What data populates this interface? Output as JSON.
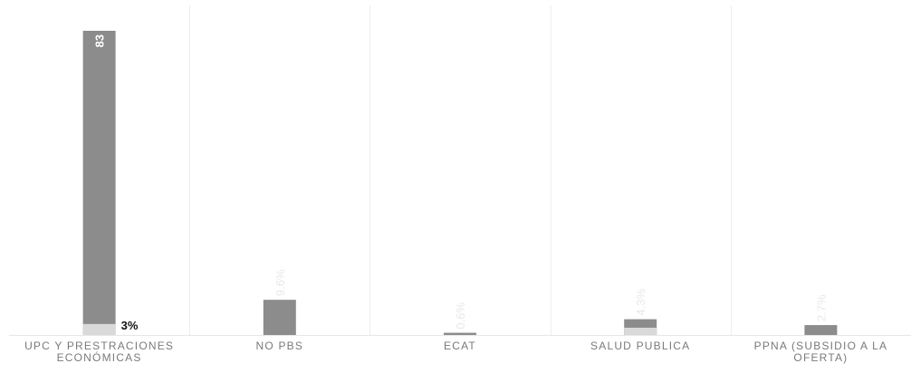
{
  "chart_data": {
    "type": "bar",
    "categories": [
      "UPC Y PRESTRACIONES ECONÓMICAS",
      "NO PBS",
      "ECAT",
      "SALUD PUBLICA",
      "PPNA (SUBSIDIO A LA OFERTA)"
    ],
    "series": [
      {
        "values": [
          83,
          9.6,
          0.6,
          4.3,
          2.7
        ],
        "color": "#8c8c8c",
        "data_labels": [
          "83",
          "9.6%",
          "0.6%",
          "4.3%",
          "2.7%"
        ]
      },
      {
        "values": [
          3,
          0,
          0,
          1.3,
          0
        ],
        "color": "#d9d9d9",
        "data_labels": [
          "3%",
          "",
          "",
          "",
          ""
        ]
      }
    ],
    "ylim": [
      0,
      83
    ],
    "grid": "vertical separators between categories",
    "legend": "none"
  }
}
